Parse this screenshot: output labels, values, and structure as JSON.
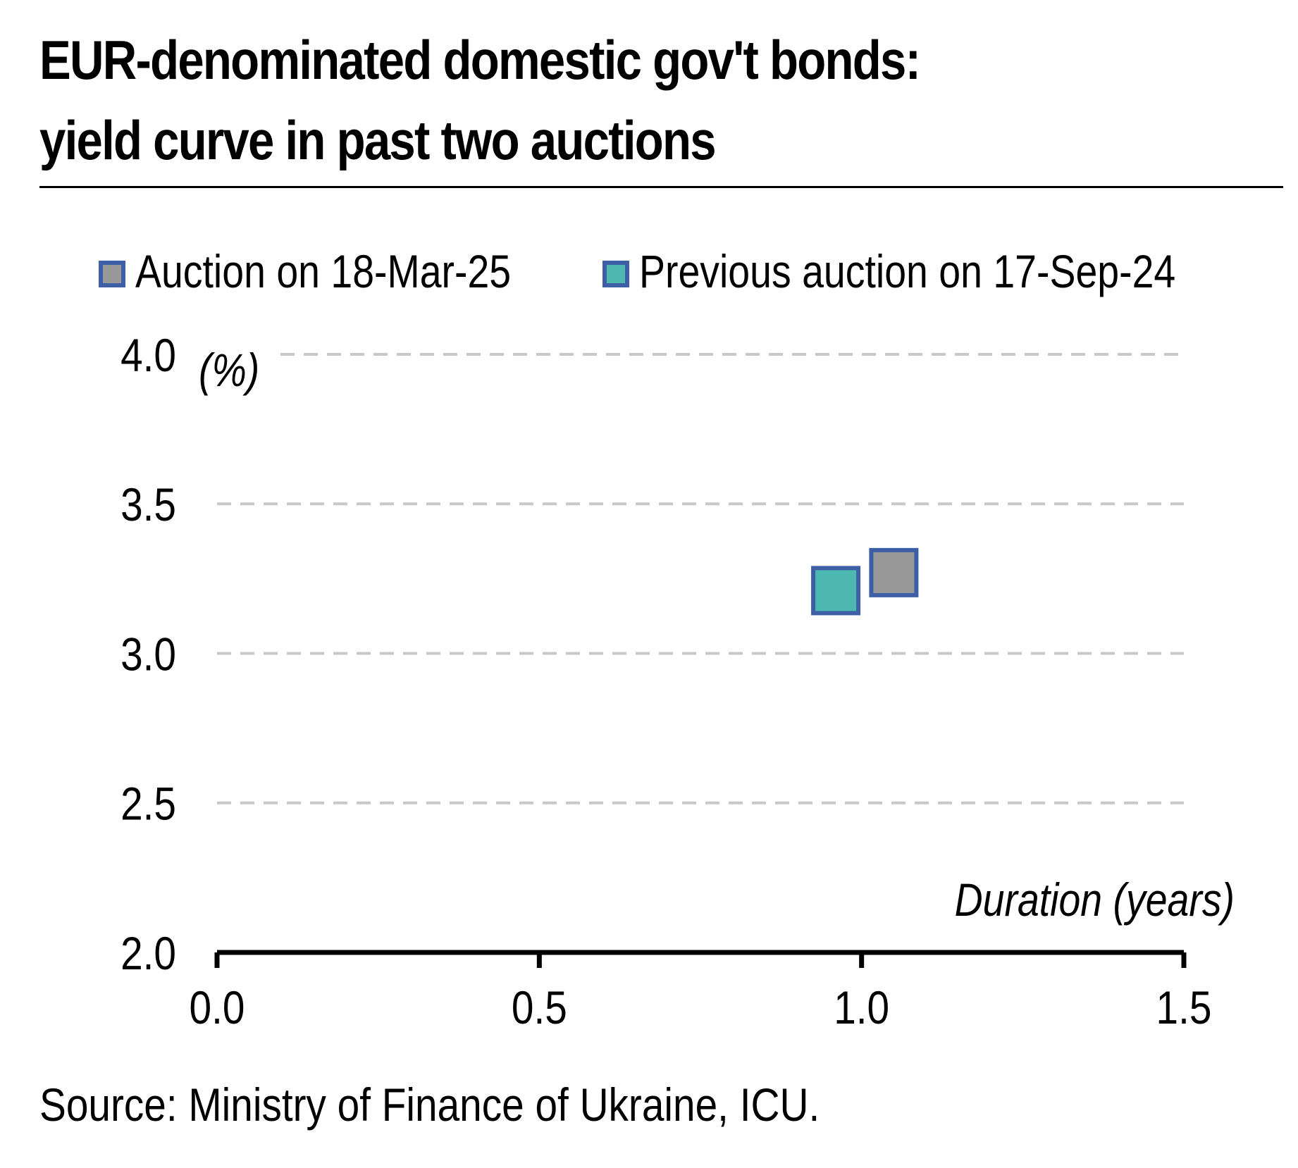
{
  "title": {
    "line1": "EUR-denominated domestic gov't bonds:",
    "line2": "yield curve in past two auctions"
  },
  "source": "Source: Ministry of Finance of Ukraine, ICU.",
  "colors": {
    "series_current": "#999999",
    "series_previous": "#4db8b0",
    "marker_border": "#3e5fa6",
    "gridline": "#c8c8c8",
    "axis": "#000000"
  },
  "chart_data": {
    "type": "scatter",
    "title": "EUR-denominated domestic gov't bonds: yield curve in past two auctions",
    "xlabel": "Duration (years)",
    "ylabel": "(%)",
    "xlim": [
      0.0,
      1.5
    ],
    "ylim": [
      2.0,
      4.0
    ],
    "xticks": [
      "0.0",
      "0.5",
      "1.0",
      "1.5"
    ],
    "yticks": [
      "2.0",
      "2.5",
      "3.0",
      "3.5",
      "4.0"
    ],
    "grid": "horizontal dashed",
    "legend": "top",
    "series": [
      {
        "name": "Auction on 18-Mar-25",
        "color": "#999999",
        "marker": "square",
        "points": [
          {
            "x": 1.05,
            "y": 3.27
          }
        ]
      },
      {
        "name": "Previous auction on 17-Sep-24",
        "color": "#4db8b0",
        "marker": "square",
        "points": [
          {
            "x": 0.96,
            "y": 3.21
          }
        ]
      }
    ]
  }
}
